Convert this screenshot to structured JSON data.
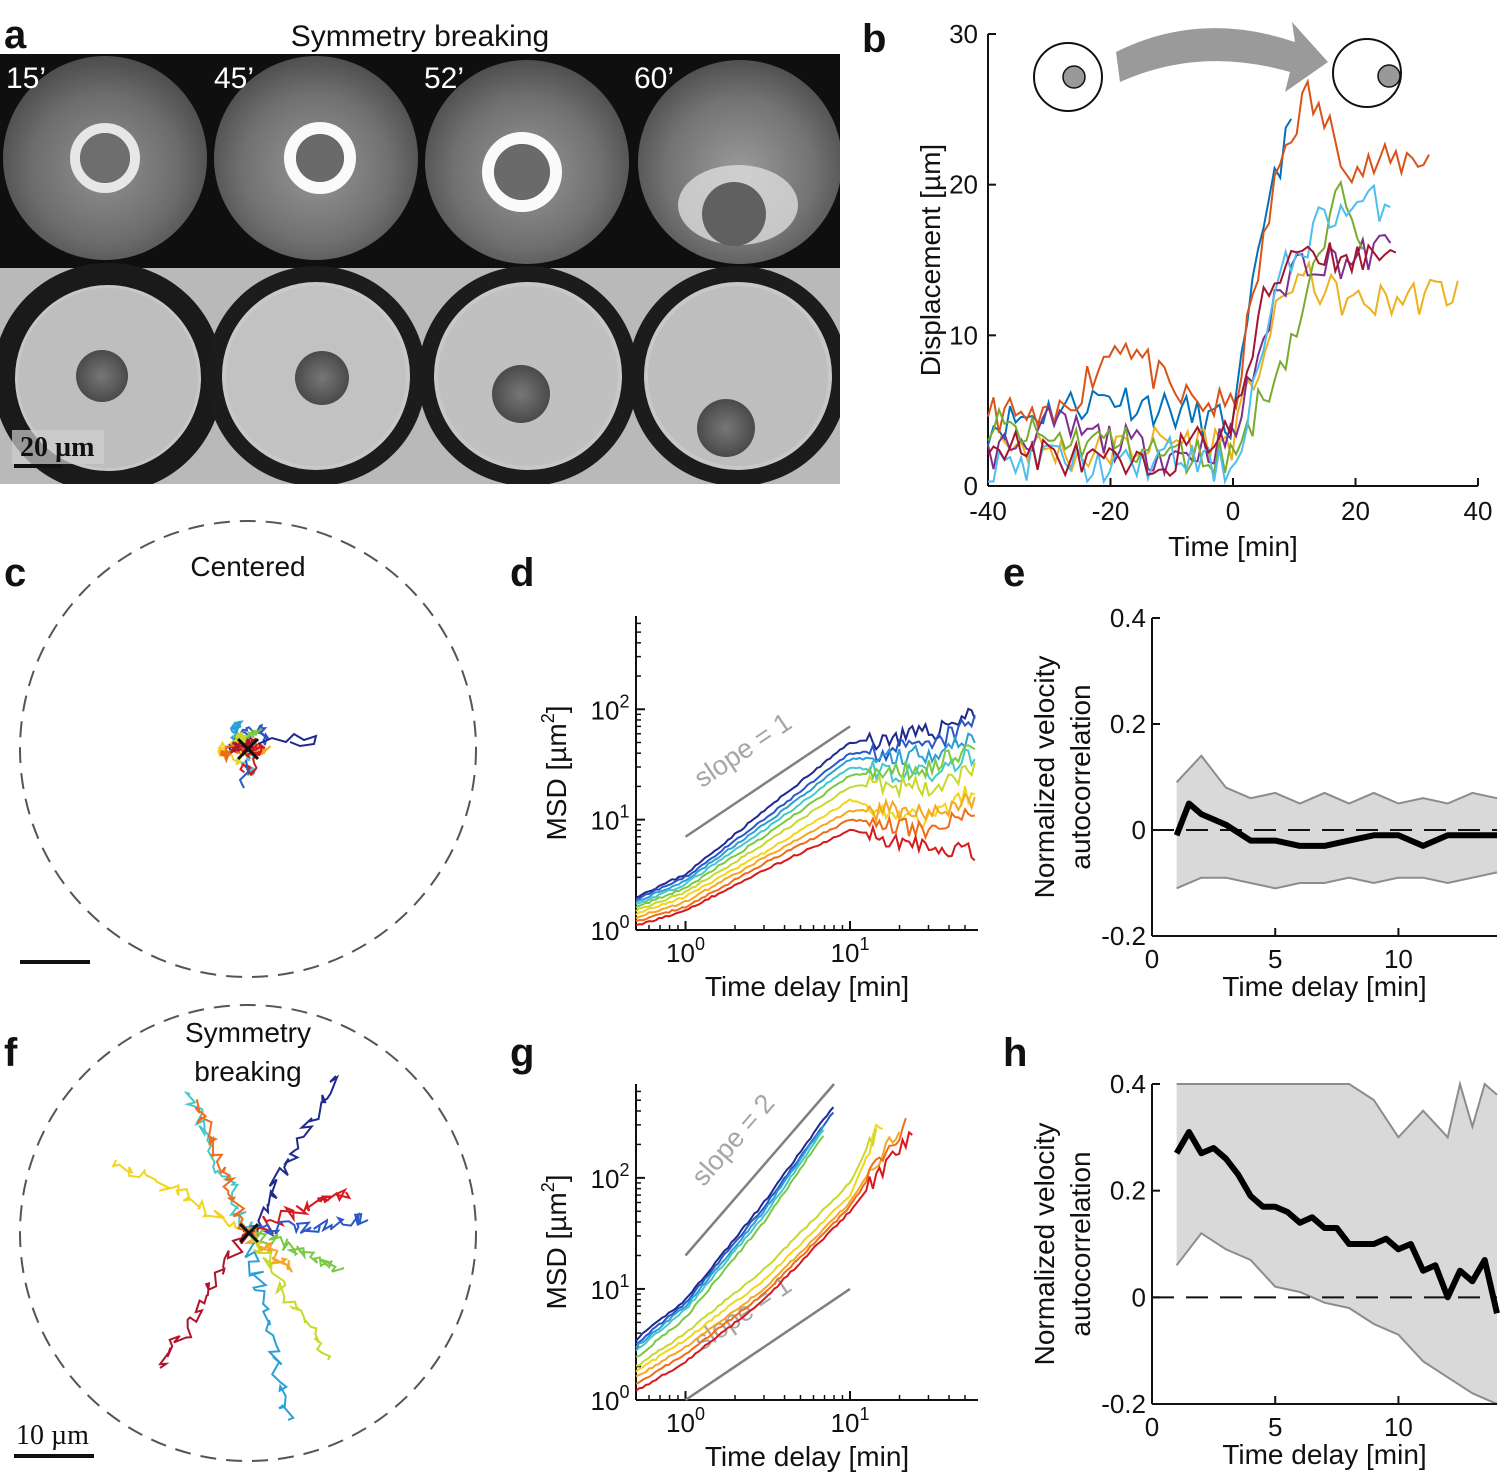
{
  "figure": {
    "panel_labels": {
      "a": "a",
      "b": "b",
      "c": "c",
      "d": "d",
      "e": "e",
      "f": "f",
      "g": "g",
      "h": "h"
    }
  },
  "panel_a": {
    "title": "Symmetry breaking",
    "timepoints": [
      "15’",
      "45’",
      "52’",
      "60’"
    ],
    "scale_bar_label": "20 µm"
  },
  "panel_c": {
    "title": "Centered"
  },
  "panel_f": {
    "title_line1": "Symmetry",
    "title_line2": "breaking",
    "scale_bar_label": "10 µm"
  },
  "colors": {
    "track_palette": [
      "#1f2a8f",
      "#2b57c9",
      "#2aa0d8",
      "#48c7c9",
      "#7ac943",
      "#c7d92b",
      "#f2d51b",
      "#f5a623",
      "#ef6c1a",
      "#d7191c",
      "#b0132c"
    ],
    "b_palette": [
      "#0072bd",
      "#d95319",
      "#edb120",
      "#7e2f8e",
      "#77ac30",
      "#4dbeee",
      "#a2142f"
    ],
    "guide": "#808080",
    "band": "#d9d9d9",
    "band_edge": "#8c8c8c"
  },
  "chart_data": [
    {
      "id": "b",
      "type": "line",
      "title": "",
      "xlabel": "Time [min]",
      "ylabel": "Displacement [µm]",
      "xlim": [
        -40,
        40
      ],
      "ylim": [
        0,
        30
      ],
      "xticks": [
        -40,
        -20,
        0,
        20,
        40
      ],
      "yticks": [
        0,
        10,
        20,
        30
      ],
      "series": [
        {
          "name": "t1",
          "x": [
            -40,
            -30,
            -20,
            -10,
            0,
            3,
            6,
            10
          ],
          "y": [
            4,
            5,
            6,
            5,
            4,
            12,
            20,
            24
          ]
        },
        {
          "name": "t2",
          "x": [
            -40,
            -30,
            -18,
            -10,
            0,
            4,
            8,
            12,
            20,
            32
          ],
          "y": [
            5,
            4,
            10,
            6,
            5,
            14,
            22,
            26,
            21,
            22
          ]
        },
        {
          "name": "t3",
          "x": [
            -38,
            -25,
            -10,
            0,
            5,
            10,
            20,
            37
          ],
          "y": [
            3,
            2,
            3,
            3,
            9,
            14,
            12,
            13
          ]
        },
        {
          "name": "t4",
          "x": [
            -40,
            -30,
            -20,
            -10,
            0,
            5,
            10,
            20,
            26
          ],
          "y": [
            2,
            4,
            3,
            2,
            3,
            10,
            15,
            15,
            16
          ]
        },
        {
          "name": "t5",
          "x": [
            -40,
            -30,
            -20,
            -10,
            0,
            5,
            10,
            18,
            22
          ],
          "y": [
            4,
            3,
            3,
            2,
            2,
            6,
            10,
            20,
            16
          ]
        },
        {
          "name": "t6",
          "x": [
            -40,
            -30,
            -20,
            -10,
            0,
            3,
            8,
            15,
            26
          ],
          "y": [
            1,
            2,
            1,
            2,
            1,
            6,
            14,
            18,
            19
          ]
        },
        {
          "name": "t7",
          "x": [
            -40,
            -30,
            -15,
            -5,
            0,
            5,
            10,
            20,
            27
          ],
          "y": [
            3,
            2,
            1,
            3,
            4,
            12,
            16,
            15,
            16
          ]
        }
      ]
    },
    {
      "id": "d",
      "type": "line",
      "xscale": "log",
      "yscale": "log",
      "xlabel": "Time delay [min]",
      "ylabel": "MSD [µm²]",
      "xlim": [
        0.5,
        60
      ],
      "ylim": [
        1,
        700
      ],
      "xtick_labels": [
        "10^0",
        "10^1"
      ],
      "ytick_labels": [
        "10^0",
        "10^1",
        "10^2"
      ],
      "guides": [
        {
          "label": "slope = 1",
          "x": [
            1,
            10
          ],
          "y": [
            7,
            70
          ]
        }
      ],
      "series": [
        {
          "name": "s1",
          "x": [
            0.5,
            1,
            3,
            10,
            30,
            60
          ],
          "y": [
            2.0,
            3.2,
            12,
            50,
            60,
            100
          ]
        },
        {
          "name": "s2",
          "x": [
            0.5,
            1,
            3,
            10,
            30,
            60
          ],
          "y": [
            1.9,
            3.0,
            10,
            40,
            45,
            80
          ]
        },
        {
          "name": "s3",
          "x": [
            0.5,
            1,
            3,
            10,
            30,
            60
          ],
          "y": [
            1.8,
            2.8,
            9,
            35,
            40,
            60
          ]
        },
        {
          "name": "s4",
          "x": [
            0.5,
            1,
            3,
            10,
            30,
            60
          ],
          "y": [
            1.7,
            2.6,
            8,
            30,
            25,
            40
          ]
        },
        {
          "name": "s5",
          "x": [
            0.5,
            1,
            3,
            10,
            30,
            60
          ],
          "y": [
            1.6,
            2.4,
            7,
            25,
            30,
            50
          ]
        },
        {
          "name": "s6",
          "x": [
            0.5,
            1,
            3,
            10,
            30,
            60
          ],
          "y": [
            1.5,
            2.2,
            6,
            20,
            20,
            30
          ]
        },
        {
          "name": "s7",
          "x": [
            0.5,
            1,
            3,
            10,
            30,
            60
          ],
          "y": [
            1.4,
            2.0,
            5,
            15,
            10,
            20
          ]
        },
        {
          "name": "s8",
          "x": [
            0.5,
            1,
            3,
            10,
            30,
            60
          ],
          "y": [
            1.3,
            1.8,
            4.5,
            12,
            12,
            15
          ]
        },
        {
          "name": "s9",
          "x": [
            0.5,
            1,
            3,
            10,
            30,
            60
          ],
          "y": [
            1.2,
            1.6,
            4,
            10,
            8,
            12
          ]
        },
        {
          "name": "s10",
          "x": [
            0.5,
            1,
            3,
            10,
            30,
            60
          ],
          "y": [
            1.1,
            1.5,
            3.5,
            8,
            6,
            5
          ]
        }
      ]
    },
    {
      "id": "e",
      "type": "line",
      "xlabel": "Time delay [min]",
      "ylabel_line1": "Normalized velocity",
      "ylabel_line2": "autocorrelation",
      "xlim": [
        0,
        14
      ],
      "ylim": [
        -0.2,
        0.4
      ],
      "xticks": [
        0,
        5,
        10
      ],
      "yticks": [
        -0.2,
        0,
        0.2,
        0.4
      ],
      "ytick_labels": [
        "-0.2",
        "0",
        "0.2",
        "0.4"
      ],
      "xtick_labels": [
        "0",
        "5",
        "10"
      ],
      "mean": {
        "x": [
          1,
          1.5,
          2,
          3,
          4,
          5,
          6,
          7,
          8,
          9,
          10,
          11,
          12,
          13,
          14
        ],
        "y": [
          -0.01,
          0.05,
          0.03,
          0.01,
          -0.02,
          -0.02,
          -0.03,
          -0.03,
          -0.02,
          -0.01,
          -0.01,
          -0.03,
          -0.01,
          -0.01,
          -0.01
        ]
      },
      "upper": {
        "x": [
          1,
          2,
          3,
          4,
          5,
          6,
          7,
          8,
          9,
          10,
          11,
          12,
          13,
          14
        ],
        "y": [
          0.09,
          0.14,
          0.08,
          0.06,
          0.07,
          0.05,
          0.07,
          0.05,
          0.07,
          0.05,
          0.06,
          0.05,
          0.07,
          0.06
        ]
      },
      "lower": {
        "x": [
          1,
          2,
          3,
          4,
          5,
          6,
          7,
          8,
          9,
          10,
          11,
          12,
          13,
          14
        ],
        "y": [
          -0.11,
          -0.09,
          -0.09,
          -0.1,
          -0.11,
          -0.1,
          -0.1,
          -0.09,
          -0.1,
          -0.09,
          -0.09,
          -0.1,
          -0.09,
          -0.08
        ]
      }
    },
    {
      "id": "g",
      "type": "line",
      "xscale": "log",
      "yscale": "log",
      "xlabel": "Time delay [min]",
      "ylabel": "MSD [µm²]",
      "xlim": [
        0.5,
        60
      ],
      "ylim": [
        1,
        700
      ],
      "xtick_labels": [
        "10^0",
        "10^1"
      ],
      "ytick_labels": [
        "10^0",
        "10^1",
        "10^2"
      ],
      "guides": [
        {
          "label": "slope = 2",
          "x": [
            1,
            8
          ],
          "y": [
            20,
            700
          ]
        },
        {
          "label": "slope = 1",
          "x": [
            1,
            10
          ],
          "y": [
            1,
            10
          ]
        }
      ],
      "series": [
        {
          "name": "s1",
          "x": [
            0.5,
            1,
            3,
            8
          ],
          "y": [
            3.5,
            8,
            60,
            450
          ]
        },
        {
          "name": "s2",
          "x": [
            0.5,
            1,
            3,
            8
          ],
          "y": [
            3.2,
            7.5,
            55,
            400
          ]
        },
        {
          "name": "s3",
          "x": [
            0.5,
            1,
            3,
            7
          ],
          "y": [
            3.0,
            7,
            50,
            300
          ]
        },
        {
          "name": "s4",
          "x": [
            0.5,
            1,
            3,
            7
          ],
          "y": [
            2.8,
            6.5,
            45,
            280
          ]
        },
        {
          "name": "s5",
          "x": [
            0.5,
            1,
            3,
            7
          ],
          "y": [
            2.4,
            5.5,
            40,
            250
          ]
        },
        {
          "name": "s6",
          "x": [
            0.5,
            1,
            3,
            10,
            15
          ],
          "y": [
            2.0,
            4,
            15,
            90,
            300
          ]
        },
        {
          "name": "s7",
          "x": [
            0.5,
            1,
            3,
            10,
            16
          ],
          "y": [
            1.8,
            3.5,
            12,
            70,
            350
          ]
        },
        {
          "name": "s8",
          "x": [
            0.5,
            1,
            3,
            10,
            20
          ],
          "y": [
            1.6,
            3,
            10,
            60,
            300
          ]
        },
        {
          "name": "s9",
          "x": [
            0.5,
            1,
            3,
            10,
            22
          ],
          "y": [
            1.4,
            2.6,
            9,
            55,
            330
          ]
        },
        {
          "name": "s10",
          "x": [
            0.5,
            1,
            3,
            10,
            25
          ],
          "y": [
            1.2,
            2.2,
            8,
            50,
            300
          ]
        }
      ]
    },
    {
      "id": "h",
      "type": "line",
      "xlabel": "Time delay [min]",
      "ylabel_line1": "Normalized velocity",
      "ylabel_line2": "autocorrelation",
      "xlim": [
        0,
        14
      ],
      "ylim": [
        -0.2,
        0.4
      ],
      "xticks": [
        0,
        5,
        10
      ],
      "yticks": [
        -0.2,
        0,
        0.2,
        0.4
      ],
      "ytick_labels": [
        "-0.2",
        "0",
        "0.2",
        "0.4"
      ],
      "xtick_labels": [
        "0",
        "5",
        "10"
      ],
      "mean": {
        "x": [
          1,
          1.5,
          2,
          2.5,
          3,
          3.5,
          4,
          4.5,
          5,
          5.5,
          6,
          6.5,
          7,
          7.5,
          8,
          8.5,
          9,
          9.5,
          10,
          10.5,
          11,
          11.5,
          12,
          12.5,
          13,
          13.5,
          14
        ],
        "y": [
          0.27,
          0.31,
          0.27,
          0.28,
          0.26,
          0.23,
          0.19,
          0.17,
          0.17,
          0.16,
          0.14,
          0.15,
          0.13,
          0.13,
          0.1,
          0.1,
          0.1,
          0.11,
          0.09,
          0.1,
          0.05,
          0.06,
          0.0,
          0.05,
          0.03,
          0.07,
          -0.03
        ]
      },
      "upper": {
        "x": [
          1,
          3,
          4,
          5,
          6,
          7,
          8,
          9,
          10,
          11,
          12,
          12.5,
          13,
          13.5,
          14
        ],
        "y": [
          0.4,
          0.4,
          0.4,
          0.4,
          0.4,
          0.4,
          0.4,
          0.37,
          0.3,
          0.35,
          0.3,
          0.4,
          0.32,
          0.4,
          0.38
        ]
      },
      "lower": {
        "x": [
          1,
          2,
          3,
          4,
          5,
          6,
          7,
          8,
          9,
          10,
          11,
          12,
          13,
          14
        ],
        "y": [
          0.06,
          0.12,
          0.09,
          0.07,
          0.02,
          0.01,
          -0.01,
          -0.02,
          -0.05,
          -0.07,
          -0.12,
          -0.15,
          -0.18,
          -0.2
        ]
      }
    }
  ]
}
